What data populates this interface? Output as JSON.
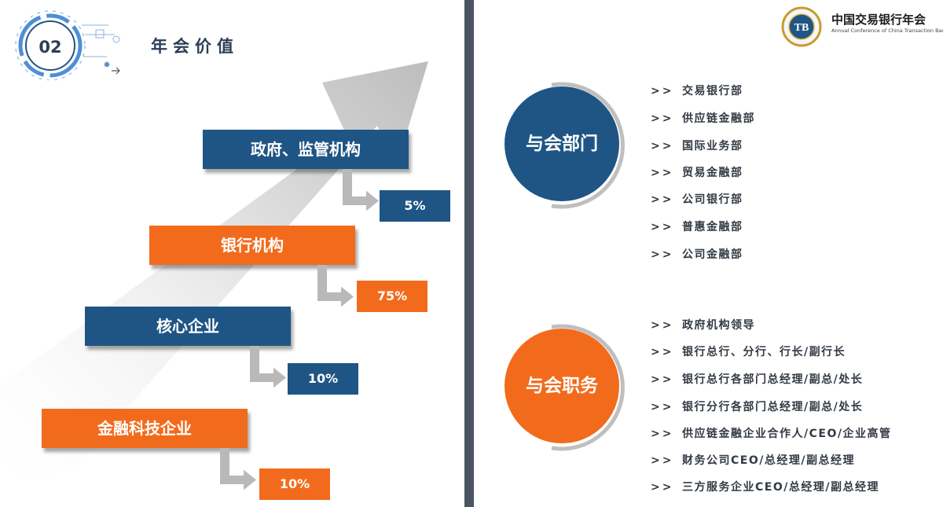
{
  "header": {
    "badge_number": "02",
    "title": "年会价值"
  },
  "logo": {
    "emblem_text": "TB",
    "title": "中国交易银行年会",
    "subtitle": "Annual Conference of China Transaction Banking"
  },
  "steps": [
    {
      "label": "政府、监管机构",
      "percent": "5%",
      "color": "#1f5584"
    },
    {
      "label": "银行机构",
      "percent": "75%",
      "color": "#f26b1c"
    },
    {
      "label": "核心企业",
      "percent": "10%",
      "color": "#1f5584"
    },
    {
      "label": "金融科技企业",
      "percent": "10%",
      "color": "#f26b1c"
    }
  ],
  "departments": {
    "circle_label": "与会部门",
    "arrow": ">>",
    "items": [
      "交易银行部",
      "供应链金融部",
      "国际业务部",
      "贸易金融部",
      "公司银行部",
      "普惠金融部",
      "公司金融部"
    ]
  },
  "positions": {
    "circle_label": "与会职务",
    "arrow": ">>",
    "items": [
      "政府机构领导",
      "银行总行、分行、行长/副行长",
      "银行总行各部门总经理/副总/处长",
      "银行分行各部门总经理/副总/处长",
      "供应链金融企业合作人/CEO/企业高管",
      "财务公司CEO/总经理/副总经理",
      "三方服务企业CEO/总经理/副总经理"
    ]
  },
  "colors": {
    "blue": "#1f5584",
    "orange": "#f26b1c",
    "divider": "#4a5462",
    "arrow_gray": "#b9b9b9"
  }
}
